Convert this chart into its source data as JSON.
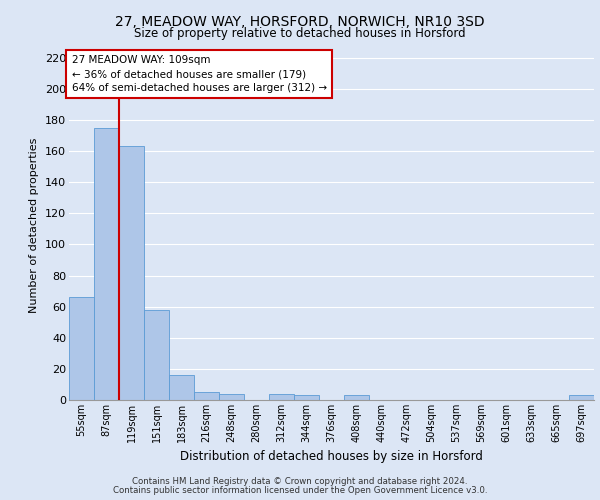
{
  "title1": "27, MEADOW WAY, HORSFORD, NORWICH, NR10 3SD",
  "title2": "Size of property relative to detached houses in Horsford",
  "xlabel": "Distribution of detached houses by size in Horsford",
  "ylabel": "Number of detached properties",
  "categories": [
    "55sqm",
    "87sqm",
    "119sqm",
    "151sqm",
    "183sqm",
    "216sqm",
    "248sqm",
    "280sqm",
    "312sqm",
    "344sqm",
    "376sqm",
    "408sqm",
    "440sqm",
    "472sqm",
    "504sqm",
    "537sqm",
    "569sqm",
    "601sqm",
    "633sqm",
    "665sqm",
    "697sqm"
  ],
  "bar_heights": [
    66,
    175,
    163,
    58,
    16,
    5,
    4,
    0,
    4,
    3,
    0,
    3,
    0,
    0,
    0,
    0,
    0,
    0,
    0,
    0,
    3
  ],
  "bar_color": "#aec6e8",
  "bar_edge_color": "#5b9bd5",
  "background_color": "#dce6f5",
  "plot_bg_color": "#dce6f5",
  "grid_color": "#ffffff",
  "vline_color": "#cc0000",
  "annotation_text": "27 MEADOW WAY: 109sqm\n← 36% of detached houses are smaller (179)\n64% of semi-detached houses are larger (312) →",
  "annotation_box_color": "#ffffff",
  "annotation_box_edge": "#cc0000",
  "ylim": [
    0,
    225
  ],
  "yticks": [
    0,
    20,
    40,
    60,
    80,
    100,
    120,
    140,
    160,
    180,
    200,
    220
  ],
  "footer_line1": "Contains HM Land Registry data © Crown copyright and database right 2024.",
  "footer_line2": "Contains public sector information licensed under the Open Government Licence v3.0."
}
